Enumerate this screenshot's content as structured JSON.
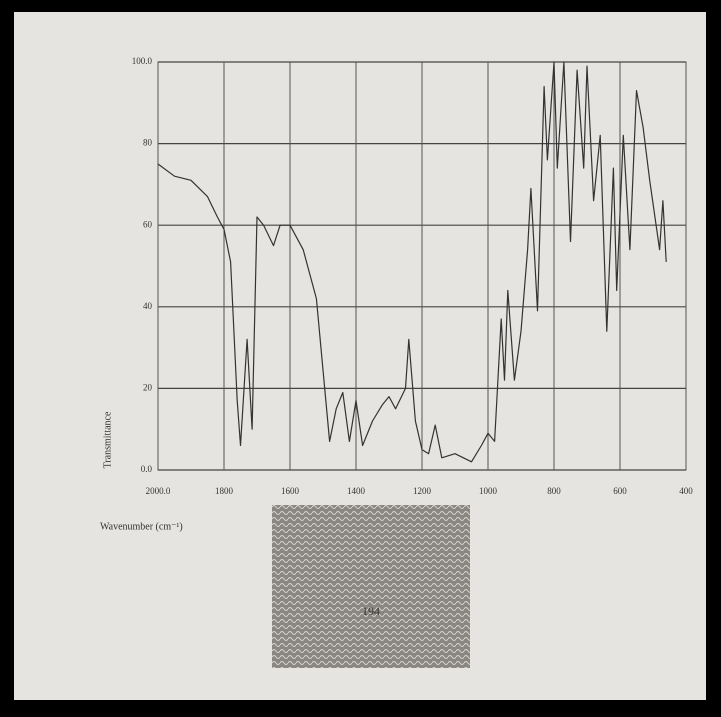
{
  "chart_data": {
    "type": "line",
    "x_label": "Wavenumber (cm⁻¹)",
    "y_label": "Transmittance",
    "x": [
      2000,
      1950,
      1900,
      1850,
      1820,
      1800,
      1780,
      1760,
      1750,
      1730,
      1715,
      1700,
      1680,
      1650,
      1630,
      1600,
      1560,
      1520,
      1480,
      1460,
      1440,
      1420,
      1400,
      1380,
      1350,
      1320,
      1300,
      1280,
      1250,
      1240,
      1220,
      1200,
      1180,
      1160,
      1140,
      1100,
      1050,
      1020,
      1000,
      980,
      960,
      950,
      940,
      920,
      900,
      880,
      870,
      850,
      830,
      820,
      800,
      790,
      770,
      750,
      730,
      710,
      700,
      680,
      660,
      640,
      620,
      610,
      590,
      570,
      550,
      530,
      510,
      480,
      470,
      460
    ],
    "values": [
      75,
      72,
      71,
      67,
      62,
      59,
      51,
      17,
      6,
      32,
      10,
      62,
      60,
      55,
      60,
      60,
      54,
      42,
      7,
      15,
      19,
      7,
      17,
      6,
      12,
      16,
      18,
      15,
      20,
      32,
      12,
      5,
      4,
      11,
      3,
      4,
      2,
      6,
      9,
      7,
      37,
      22,
      44,
      22,
      34,
      54,
      69,
      39,
      94,
      76,
      100,
      74,
      100,
      56,
      98,
      74,
      99,
      66,
      82,
      34,
      74,
      44,
      82,
      54,
      93,
      84,
      71,
      54,
      66,
      51
    ],
    "color": "#333333",
    "xlim": [
      2000,
      400
    ],
    "xticks": [
      {
        "value": 2000,
        "label": "2000.0"
      },
      1800,
      1600,
      1400,
      1200,
      1000,
      800,
      600,
      400
    ],
    "ylim": [
      0,
      100
    ],
    "yticks": [
      {
        "value": 0,
        "label": "0.0"
      },
      20,
      40,
      60,
      80,
      {
        "value": 100,
        "label": "100.0"
      }
    ],
    "grid": true
  },
  "page_label": "194"
}
